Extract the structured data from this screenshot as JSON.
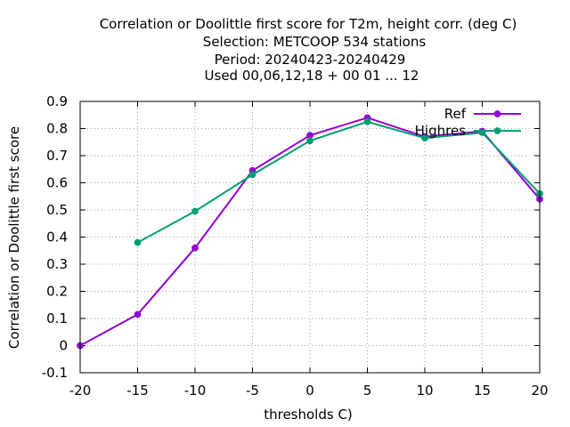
{
  "chart_data": {
    "type": "line",
    "title_lines": [
      "Correlation or Doolittle first score  for T2m, height corr. (deg C)",
      "Selection: METCOOP    534 stations",
      "Period: 20240423-20240429",
      "Used  00,06,12,18 + 00 01 ... 12"
    ],
    "xlabel": "thresholds C)",
    "ylabel": "Correlation or Doolittle first score",
    "xlim": [
      -20,
      20
    ],
    "ylim": [
      -0.1,
      0.9
    ],
    "x_ticks": [
      -20,
      -15,
      -10,
      -5,
      0,
      5,
      10,
      15,
      20
    ],
    "y_ticks": [
      -0.1,
      0,
      0.1,
      0.2,
      0.3,
      0.4,
      0.5,
      0.6,
      0.7,
      0.8,
      0.9
    ],
    "grid": true,
    "legend_position": "top-right",
    "series": [
      {
        "name": "Ref",
        "color": "#9400d3",
        "x": [
          -20,
          -15,
          -10,
          -5,
          0,
          5,
          10,
          15,
          20
        ],
        "values": [
          0.0,
          0.115,
          0.36,
          0.645,
          0.775,
          0.84,
          0.77,
          0.79,
          0.54
        ]
      },
      {
        "name": "Highres",
        "color": "#009e73",
        "x": [
          -15,
          -10,
          -5,
          0,
          5,
          10,
          15,
          20
        ],
        "values": [
          0.38,
          0.495,
          0.63,
          0.755,
          0.825,
          0.765,
          0.785,
          0.56
        ]
      }
    ]
  }
}
